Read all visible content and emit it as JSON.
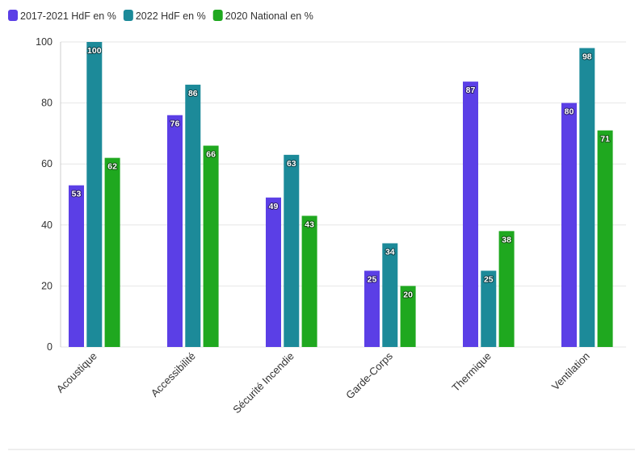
{
  "chart_data": {
    "type": "bar",
    "title": "",
    "xlabel": "",
    "ylabel": "",
    "ylim": [
      0,
      100
    ],
    "yticks": [
      0,
      20,
      40,
      60,
      80,
      100
    ],
    "grid": true,
    "legend_position": "top-left",
    "categories": [
      "Acoustique",
      "Accessibilité",
      "Sécurité Incendie",
      "Garde-Corps",
      "Thermique",
      "Ventilation"
    ],
    "series": [
      {
        "name": "2017-2021 HdF en %",
        "color": "#5b3fe6",
        "values": [
          53,
          76,
          49,
          25,
          87,
          80
        ]
      },
      {
        "name": "2022 HdF en %",
        "color": "#1c8a99",
        "values": [
          100,
          86,
          63,
          34,
          25,
          98
        ]
      },
      {
        "name": "2020 National en %",
        "color": "#1fa81f",
        "values": [
          62,
          66,
          43,
          20,
          38,
          71
        ]
      }
    ]
  }
}
